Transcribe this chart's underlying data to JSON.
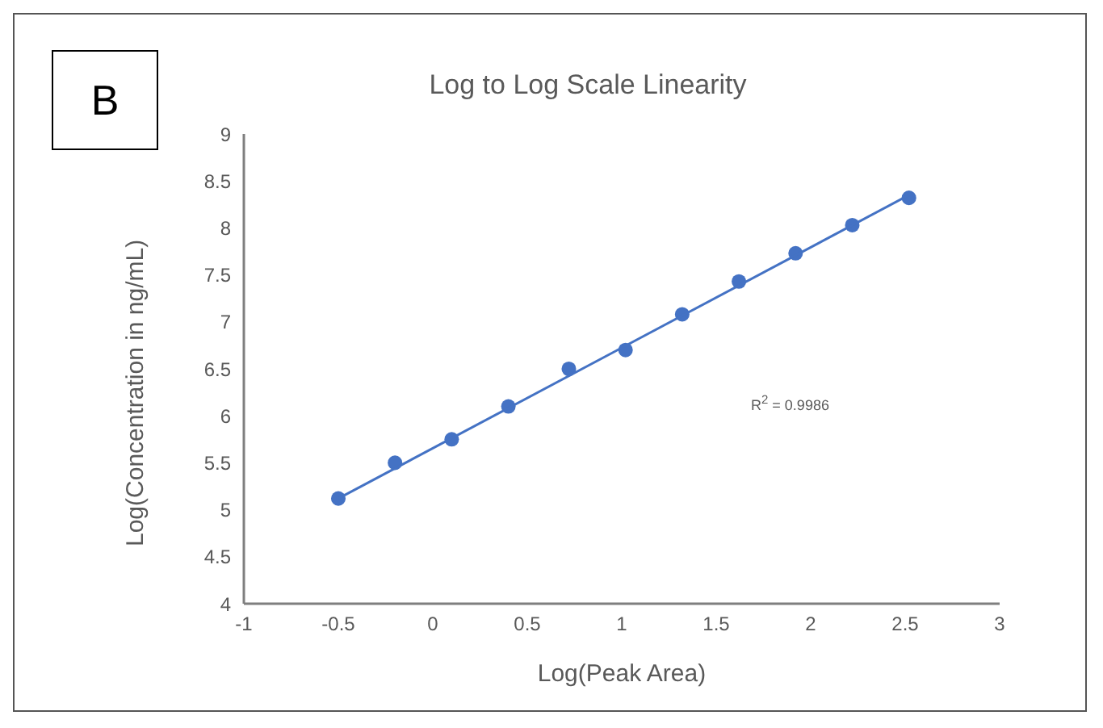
{
  "chart_data": {
    "type": "scatter",
    "title": "Log to Log Scale Linearity",
    "xlabel": "Log(Peak Area)",
    "ylabel": "Log(Concentration in ng/mL)",
    "annotations": [
      "B",
      "R$^{2}$ = 0.9986"
    ],
    "series": [
      {
        "type": "scatter",
        "color": "#4472c4",
        "marker": "circle",
        "x": [
          -0.5,
          -0.2,
          0.1,
          0.4,
          0.72,
          1.02,
          1.32,
          1.62,
          1.92,
          2.22,
          2.52
        ],
        "values": [
          5.12,
          5.5,
          5.75,
          6.1,
          6.5,
          6.7,
          7.08,
          7.43,
          7.73,
          8.03,
          8.32
        ]
      },
      {
        "type": "line",
        "color": "#4472c4",
        "marker": "none",
        "x": [
          -0.5,
          2.52
        ],
        "values": [
          5.12,
          8.35
        ]
      }
    ],
    "xlim": [
      -1,
      3
    ],
    "xticks": [
      -1,
      -0.5,
      0,
      0.5,
      1,
      1.5,
      2,
      2.5,
      3
    ],
    "ylim": [
      4,
      9
    ],
    "yticks": [
      4,
      4.5,
      5,
      5.5,
      6,
      6.5,
      7,
      7.5,
      8,
      8.5,
      9
    ],
    "grid": false
  }
}
